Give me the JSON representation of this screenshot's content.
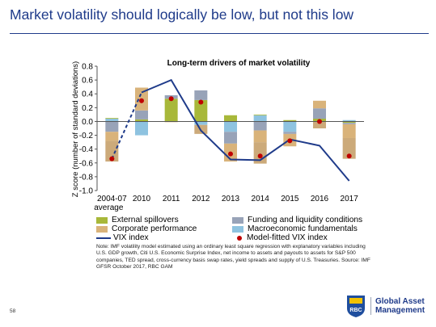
{
  "slide": {
    "title": "Market volatility should logically be low, but not this low",
    "page_number": "58",
    "brand_line1": "Global Asset",
    "brand_line2": "Management",
    "logo_text": "RBC"
  },
  "legend": {
    "external": "External spillovers",
    "corporate": "Corporate performance",
    "vix": "VIX index",
    "funding": "Funding and liquidity conditions",
    "macro": "Macroeconomic fundamentals",
    "model": "Model-fitted VIX index"
  },
  "note": "Note: IMF volatility model estimated using an ordinary least square regression with explanatory variables including U.S. GDP growth, Citi U.S. Economic Surprise Index, net income to assets and payouts to assets for S&P 500 companies, TED spread, cross-currency basis swap rates, yield spreads and supply of U.S. Treasuries. Source: IMF GFSR October 2017, RBC GAM",
  "colors": {
    "external": "#a8b83a",
    "corporate": "#d9b37a",
    "funding": "#98a3b8",
    "macro": "#8ec3e0",
    "vix": "#1f3b8a",
    "model": "#c00000",
    "title": "#1f3b8a"
  },
  "chart_data": {
    "type": "bar",
    "title": "Long-term drivers of market volatility",
    "ylabel": "Z score (number of standard deviations)",
    "ylim": [
      -1.0,
      0.8
    ],
    "yticks": [
      "0.8",
      "0.6",
      "0.4",
      "0.2",
      "0.0",
      "-0.2",
      "-0.4",
      "-0.6",
      "-0.8",
      "-1.0"
    ],
    "ytick_values": [
      0.8,
      0.6,
      0.4,
      0.2,
      0.0,
      -0.2,
      -0.4,
      -0.6,
      -0.8,
      -1.0
    ],
    "categories": [
      "2004-07 average",
      "2010",
      "2011",
      "2012",
      "2013",
      "2014",
      "2015",
      "2016",
      "2017"
    ],
    "category_lines": [
      [
        "2004-07",
        "average"
      ],
      [
        "2010"
      ],
      [
        "2011"
      ],
      [
        "2012"
      ],
      [
        "2013"
      ],
      [
        "2014"
      ],
      [
        "2015"
      ],
      [
        "2016"
      ],
      [
        "2017"
      ]
    ],
    "stacked": true,
    "series": [
      {
        "key": "macro",
        "name": "Macroeconomic fundamentals",
        "values": [
          0.04,
          -0.2,
          0.0,
          -0.05,
          -0.15,
          0.09,
          -0.15,
          0.0,
          0.02
        ]
      },
      {
        "key": "external",
        "name": "External spillovers",
        "values": [
          0.01,
          0.03,
          0.33,
          0.31,
          0.09,
          0.01,
          0.02,
          0.04,
          -0.02
        ]
      },
      {
        "key": "funding",
        "name": "Funding and liquidity conditions",
        "values": [
          -0.15,
          0.13,
          0.05,
          0.14,
          -0.17,
          -0.13,
          -0.03,
          0.15,
          -0.02
        ]
      },
      {
        "key": "corporate",
        "name": "Corporate performance",
        "values": [
          -0.13,
          0.33,
          -0.01,
          0.0,
          -0.26,
          -0.17,
          -0.18,
          0.11,
          -0.2
        ]
      },
      {
        "key": "extra",
        "name": "",
        "values": [
          -0.3,
          0.0,
          0.0,
          -0.13,
          0.0,
          -0.31,
          0.0,
          -0.1,
          -0.3
        ]
      }
    ],
    "vix_index": [
      -0.54,
      0.42,
      0.6,
      -0.13,
      -0.55,
      -0.56,
      -0.26,
      -0.35,
      -0.86
    ],
    "model_fitted": [
      -0.54,
      0.3,
      0.33,
      0.28,
      -0.47,
      -0.5,
      -0.28,
      0.0,
      -0.5
    ],
    "grid": false,
    "legend_position": "bottom"
  }
}
